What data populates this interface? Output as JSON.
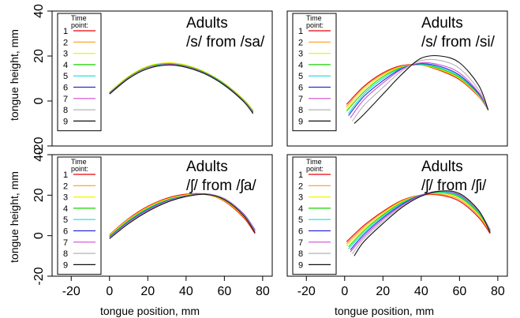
{
  "figure": {
    "ylabel": "tongue height, mm",
    "xlabel": "tongue position, mm",
    "legend_title_line1": "Time",
    "legend_title_line2": "point:",
    "time_points": [
      "1",
      "2",
      "3",
      "4",
      "5",
      "6",
      "7",
      "8",
      "9"
    ],
    "series_colors": [
      "#e8000b",
      "#ff9a1f",
      "#f2f200",
      "#17d400",
      "#10dfd8",
      "#2a2ad8",
      "#d24dd2",
      "#b4b4b4",
      "#101010"
    ]
  },
  "chart_data": [
    {
      "type": "line",
      "title_line1": "Adults",
      "title_line2": "/s/ from /sa/",
      "xlim": [
        -30,
        85
      ],
      "ylim": [
        -20,
        40
      ],
      "xticks": [
        -20,
        0,
        20,
        40,
        60,
        80
      ],
      "yticks": [
        -20,
        0,
        20,
        40
      ],
      "legend_position": "top-left",
      "series": [
        {
          "name": "1",
          "x": [
            0,
            10,
            20,
            30,
            40,
            50,
            60,
            70,
            75
          ],
          "y": [
            3.5,
            10.5,
            15,
            16.5,
            15.5,
            12.5,
            7.5,
            0.5,
            -4.5
          ]
        },
        {
          "name": "2",
          "x": [
            0,
            10,
            20,
            30,
            40,
            50,
            60,
            70,
            75
          ],
          "y": [
            3.8,
            10.8,
            15.3,
            16.7,
            15.7,
            12.7,
            7.7,
            0.6,
            -4.3
          ]
        },
        {
          "name": "3",
          "x": [
            0,
            10,
            20,
            30,
            40,
            50,
            60,
            70,
            75
          ],
          "y": [
            4,
            11,
            15.5,
            17,
            16,
            12.9,
            7.9,
            0.8,
            -4.1
          ]
        },
        {
          "name": "4",
          "x": [
            0,
            10,
            20,
            30,
            40,
            50,
            60,
            70,
            75
          ],
          "y": [
            3.6,
            10.6,
            15.1,
            16.6,
            15.6,
            12.6,
            7.6,
            0.4,
            -4.6
          ]
        },
        {
          "name": "5",
          "x": [
            0,
            10,
            20,
            30,
            40,
            50,
            60,
            70,
            75
          ],
          "y": [
            3.4,
            10.4,
            14.9,
            16.4,
            15.4,
            12.4,
            7.4,
            0.3,
            -4.8
          ]
        },
        {
          "name": "6",
          "x": [
            0,
            10,
            20,
            30,
            40,
            50,
            60,
            70,
            75
          ],
          "y": [
            3.5,
            10.4,
            14.8,
            16.3,
            15.3,
            12.3,
            7.3,
            0.2,
            -5
          ]
        },
        {
          "name": "7",
          "x": [
            0,
            10,
            20,
            30,
            40,
            50,
            60,
            70,
            75
          ],
          "y": [
            3.3,
            10.3,
            14.8,
            16.3,
            15.3,
            12.2,
            7.2,
            0.1,
            -5.2
          ]
        },
        {
          "name": "8",
          "x": [
            0,
            10,
            20,
            30,
            40,
            50,
            60,
            70,
            75
          ],
          "y": [
            3.2,
            10.2,
            14.6,
            16.1,
            15.1,
            12.1,
            7.1,
            0,
            -5.4
          ]
        },
        {
          "name": "9",
          "x": [
            0,
            10,
            20,
            30,
            40,
            50,
            60,
            70,
            75
          ],
          "y": [
            3.1,
            10,
            14.4,
            16,
            15,
            12,
            7,
            -0.2,
            -5.6
          ]
        }
      ]
    },
    {
      "type": "line",
      "title_line1": "Adults",
      "title_line2": "/s/ from /si/",
      "xlim": [
        -30,
        85
      ],
      "ylim": [
        -20,
        40
      ],
      "xticks": [
        -20,
        0,
        20,
        40,
        60,
        80
      ],
      "yticks": [
        -20,
        0,
        20,
        40
      ],
      "legend_position": "top-left",
      "series": [
        {
          "name": "1",
          "x": [
            1,
            10,
            20,
            30,
            40,
            50,
            60,
            70,
            75
          ],
          "y": [
            -1.5,
            6.5,
            12.5,
            15.8,
            16,
            13.5,
            9.5,
            2,
            -4
          ]
        },
        {
          "name": "2",
          "x": [
            1,
            10,
            20,
            30,
            40,
            50,
            60,
            70,
            75
          ],
          "y": [
            -2.5,
            6,
            12,
            15.5,
            16,
            13.8,
            9.8,
            2.2,
            -4
          ]
        },
        {
          "name": "3",
          "x": [
            1,
            10,
            20,
            30,
            40,
            50,
            60,
            70,
            75
          ],
          "y": [
            -3.5,
            5,
            11.5,
            15.2,
            16,
            14,
            10.2,
            2.5,
            -4
          ]
        },
        {
          "name": "4",
          "x": [
            1,
            10,
            20,
            30,
            40,
            50,
            60,
            70,
            75
          ],
          "y": [
            -4.5,
            4,
            10.8,
            15,
            16.2,
            14.3,
            10.5,
            2.8,
            -4
          ]
        },
        {
          "name": "5",
          "x": [
            2,
            10,
            20,
            30,
            40,
            50,
            60,
            70,
            75
          ],
          "y": [
            -5.5,
            3,
            10,
            14.8,
            16.4,
            14.8,
            11,
            3,
            -4
          ]
        },
        {
          "name": "6",
          "x": [
            2,
            10,
            20,
            30,
            40,
            50,
            60,
            70,
            75
          ],
          "y": [
            -6.5,
            2,
            9,
            14.5,
            16.6,
            15.3,
            11.5,
            3.3,
            -4
          ]
        },
        {
          "name": "7",
          "x": [
            3,
            10,
            20,
            30,
            40,
            50,
            60,
            70,
            75
          ],
          "y": [
            -7.5,
            0.5,
            8,
            14.2,
            17,
            16,
            12.5,
            3.8,
            -4
          ]
        },
        {
          "name": "8",
          "x": [
            4,
            10,
            20,
            30,
            40,
            50,
            60,
            70,
            75
          ],
          "y": [
            -9,
            -2,
            6,
            13.5,
            18,
            18,
            14.5,
            5,
            -4
          ]
        },
        {
          "name": "9",
          "x": [
            5,
            10,
            20,
            30,
            40,
            50,
            60,
            70,
            75
          ],
          "y": [
            -10,
            -6,
            3,
            12,
            19,
            20,
            17,
            7,
            -4
          ]
        }
      ]
    },
    {
      "type": "line",
      "title_line1": "Adults",
      "title_line2": "/ʃ/ from /ʃa/",
      "xlim": [
        -30,
        85
      ],
      "ylim": [
        -20,
        40
      ],
      "xticks": [
        -20,
        0,
        20,
        40,
        60,
        80
      ],
      "yticks": [
        -20,
        0,
        20,
        40
      ],
      "legend_position": "top-left",
      "series": [
        {
          "name": "1",
          "x": [
            0,
            10,
            20,
            30,
            40,
            50,
            60,
            70,
            76
          ],
          "y": [
            0.5,
            8.5,
            14.5,
            18.5,
            20.5,
            20.5,
            17,
            9,
            1
          ]
        },
        {
          "name": "2",
          "x": [
            0,
            10,
            20,
            30,
            40,
            50,
            60,
            70,
            76
          ],
          "y": [
            0.3,
            8.2,
            14.2,
            18.2,
            20.2,
            20.3,
            17.2,
            9.4,
            1.5
          ]
        },
        {
          "name": "3",
          "x": [
            0,
            10,
            20,
            30,
            40,
            50,
            60,
            70,
            76
          ],
          "y": [
            0,
            7.8,
            13.8,
            17.9,
            20,
            20.4,
            17.5,
            9.8,
            2
          ]
        },
        {
          "name": "4",
          "x": [
            0,
            10,
            20,
            30,
            40,
            50,
            60,
            70,
            76
          ],
          "y": [
            -0.3,
            7.5,
            13.5,
            17.6,
            19.8,
            20.5,
            17.8,
            10.2,
            2.3
          ]
        },
        {
          "name": "5",
          "x": [
            0,
            10,
            20,
            30,
            40,
            50,
            60,
            70,
            76
          ],
          "y": [
            -0.6,
            7.2,
            13.2,
            17.4,
            19.7,
            20.6,
            18,
            10.5,
            2.5
          ]
        },
        {
          "name": "6",
          "x": [
            0,
            10,
            20,
            30,
            40,
            50,
            60,
            70,
            76
          ],
          "y": [
            -0.8,
            6.9,
            12.9,
            17.2,
            19.6,
            20.7,
            18.3,
            10.8,
            2.8
          ]
        },
        {
          "name": "7",
          "x": [
            0,
            10,
            20,
            30,
            40,
            50,
            60,
            70,
            76
          ],
          "y": [
            -1,
            6.6,
            12.6,
            17,
            19.5,
            20.6,
            18.2,
            10.6,
            2.4
          ]
        },
        {
          "name": "8",
          "x": [
            0,
            10,
            20,
            30,
            40,
            50,
            60,
            70,
            76
          ],
          "y": [
            -1.2,
            6.3,
            12.3,
            16.8,
            19.4,
            20.5,
            18,
            10.3,
            2
          ]
        },
        {
          "name": "9",
          "x": [
            0,
            10,
            20,
            30,
            40,
            50,
            60,
            70,
            76
          ],
          "y": [
            -1.5,
            6,
            12,
            16.5,
            19.3,
            20.4,
            17.8,
            10,
            1.5
          ]
        }
      ]
    },
    {
      "type": "line",
      "title_line1": "Adults",
      "title_line2": "/ʃ/ from /ʃi/",
      "xlim": [
        -30,
        85
      ],
      "ylim": [
        -20,
        40
      ],
      "xticks": [
        -20,
        0,
        20,
        40,
        60,
        80
      ],
      "yticks": [
        -20,
        0,
        20,
        40
      ],
      "legend_position": "top-left",
      "series": [
        {
          "name": "1",
          "x": [
            1,
            10,
            20,
            30,
            40,
            50,
            60,
            70,
            76
          ],
          "y": [
            -3,
            5,
            12,
            17.5,
            20,
            20,
            17,
            9,
            1
          ]
        },
        {
          "name": "2",
          "x": [
            1,
            10,
            20,
            30,
            40,
            50,
            60,
            70,
            76
          ],
          "y": [
            -4,
            4.2,
            11.5,
            17.2,
            20,
            20.5,
            17.8,
            9.8,
            1.5
          ]
        },
        {
          "name": "3",
          "x": [
            1,
            10,
            20,
            30,
            40,
            50,
            60,
            70,
            76
          ],
          "y": [
            -5,
            3.3,
            10.8,
            16.8,
            20,
            21,
            18.5,
            10.5,
            2
          ]
        },
        {
          "name": "4",
          "x": [
            2,
            10,
            20,
            30,
            40,
            50,
            60,
            70,
            76
          ],
          "y": [
            -5.5,
            2.4,
            10.2,
            16.4,
            20,
            21.3,
            19,
            11,
            2.3
          ]
        },
        {
          "name": "5",
          "x": [
            2,
            10,
            20,
            30,
            40,
            50,
            60,
            70,
            76
          ],
          "y": [
            -6.5,
            1.5,
            9.5,
            16,
            20,
            21.5,
            19.5,
            11.5,
            2.5
          ]
        },
        {
          "name": "6",
          "x": [
            3,
            10,
            20,
            30,
            40,
            50,
            60,
            70,
            76
          ],
          "y": [
            -7,
            0.5,
            8.8,
            15.5,
            20,
            22,
            20,
            12,
            2.8
          ]
        },
        {
          "name": "7",
          "x": [
            3,
            10,
            20,
            30,
            40,
            50,
            60,
            70,
            76
          ],
          "y": [
            -8,
            -0.5,
            8,
            15,
            19.8,
            22,
            20.2,
            12,
            2.5
          ]
        },
        {
          "name": "8",
          "x": [
            4,
            10,
            20,
            30,
            40,
            50,
            60,
            70,
            76
          ],
          "y": [
            -9,
            -1.5,
            7,
            14.5,
            19.5,
            22,
            20.5,
            12.2,
            2
          ]
        },
        {
          "name": "9",
          "x": [
            5,
            10,
            20,
            30,
            40,
            50,
            60,
            70,
            76
          ],
          "y": [
            -10,
            -3,
            6,
            14,
            19.5,
            22,
            20.8,
            12.5,
            1.5
          ]
        }
      ]
    }
  ]
}
